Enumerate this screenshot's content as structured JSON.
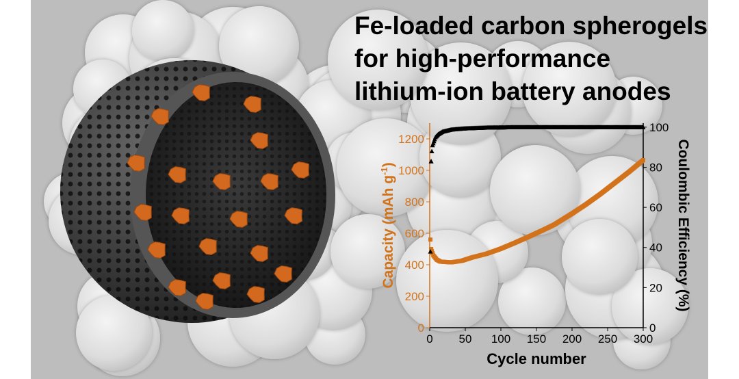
{
  "title_lines": [
    "Fe-loaded carbon spherogels",
    "for high-performance",
    "lithium-ion battery anodes"
  ],
  "colors": {
    "capacity": "#d2731c",
    "coulombic": "#000000",
    "background": "#bdbdbd"
  },
  "chart_data": {
    "type": "scatter",
    "xlabel": "Cycle number",
    "ylabel_left": "Capacity (mAh g",
    "ylabel_left_sup": "-1",
    "ylabel_left_end": ")",
    "ylabel_right": "Coulombic Efficiency (%)",
    "xlim": [
      0,
      300
    ],
    "ylim_left": [
      0,
      1300
    ],
    "ylim_right": [
      0,
      102
    ],
    "xticks": [
      "0",
      "50",
      "100",
      "150",
      "200",
      "250",
      "300"
    ],
    "yticks_left": [
      "0",
      "200",
      "400",
      "600",
      "800",
      "1000",
      "1200"
    ],
    "yticks_right": [
      "0",
      "20",
      "40",
      "60",
      "80",
      "100"
    ],
    "grid": false,
    "series": [
      {
        "axis": "left",
        "marker": "square",
        "color": "#d2731c",
        "points": [
          [
            1,
            560
          ],
          [
            2,
            500
          ],
          [
            5,
            460
          ],
          [
            10,
            432
          ],
          [
            15,
            420
          ],
          [
            30,
            415
          ],
          [
            45,
            425
          ],
          [
            60,
            447
          ],
          [
            80,
            470
          ],
          [
            100,
            502
          ],
          [
            120,
            540
          ],
          [
            140,
            580
          ],
          [
            160,
            622
          ],
          [
            175,
            655
          ],
          [
            200,
            725
          ],
          [
            220,
            785
          ],
          [
            240,
            850
          ],
          [
            260,
            920
          ],
          [
            280,
            990
          ],
          [
            300,
            1065
          ]
        ]
      },
      {
        "axis": "right",
        "marker": "triangle",
        "color": "#000000",
        "points": [
          [
            1,
            38
          ],
          [
            2,
            83
          ],
          [
            3,
            88
          ],
          [
            4,
            91
          ],
          [
            6,
            93
          ],
          [
            8,
            95
          ],
          [
            12,
            96.5
          ],
          [
            18,
            97.8
          ],
          [
            30,
            98.8
          ],
          [
            50,
            99.4
          ],
          [
            80,
            99.8
          ],
          [
            120,
            100
          ],
          [
            200,
            100
          ],
          [
            300,
            100
          ]
        ]
      }
    ]
  }
}
